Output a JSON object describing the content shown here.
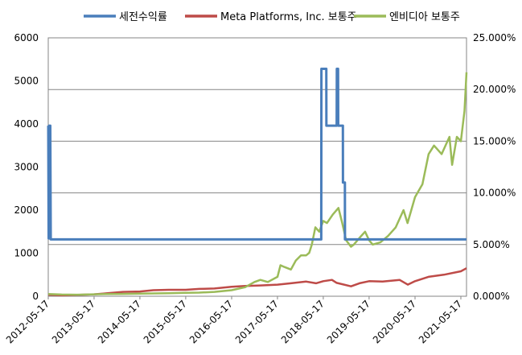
{
  "chart_data": {
    "type": "line",
    "title": "",
    "xlabel": "",
    "ylabel": "",
    "legend_position": "top",
    "grid": true,
    "x_ticks": [
      "2012-05-17",
      "2013-05-17",
      "2014-05-17",
      "2015-05-17",
      "2016-05-17",
      "2017-05-17",
      "2018-05-17",
      "2019-05-17",
      "2020-05-17",
      "2021-05-17"
    ],
    "y_left": {
      "min": 0,
      "max": 6000,
      "ticks": [
        "0",
        "1000",
        "2000",
        "3000",
        "4000",
        "5000",
        "6000"
      ]
    },
    "y_right": {
      "min": 0,
      "max": 25,
      "ticks": [
        "0.000%",
        "5.000%",
        "10.000%",
        "15.000%",
        "20.000%",
        "25.000%"
      ]
    },
    "series": [
      {
        "name": "세전수익률",
        "axis": "right",
        "color": "#4A7EBB",
        "points": [
          [
            "2012-05-17",
            16.5
          ],
          [
            "2012-05-20",
            5.6
          ],
          [
            "2012-05-25",
            16.5
          ],
          [
            "2012-05-28",
            5.6
          ],
          [
            "2012-06-02",
            16.5
          ],
          [
            "2012-06-06",
            5.5
          ],
          [
            "2018-05-01",
            5.5
          ],
          [
            "2018-05-02",
            22.0
          ],
          [
            "2018-06-10",
            22.0
          ],
          [
            "2018-06-11",
            16.5
          ],
          [
            "2018-09-01",
            16.5
          ],
          [
            "2018-09-02",
            22.0
          ],
          [
            "2018-09-12",
            22.0
          ],
          [
            "2018-09-13",
            16.5
          ],
          [
            "2018-10-20",
            16.5
          ],
          [
            "2018-10-21",
            11.0
          ],
          [
            "2018-11-05",
            11.0
          ],
          [
            "2018-11-06",
            5.5
          ],
          [
            "2021-07-01",
            5.5
          ]
        ]
      },
      {
        "name": "Meta Platforms, Inc. 보통주",
        "axis": "left",
        "color": "#BE4B48",
        "points": [
          [
            "2012-05-17",
            35
          ],
          [
            "2012-09-01",
            20
          ],
          [
            "2013-01-01",
            30
          ],
          [
            "2013-05-17",
            45
          ],
          [
            "2013-09-01",
            70
          ],
          [
            "2014-01-01",
            100
          ],
          [
            "2014-05-17",
            110
          ],
          [
            "2014-09-01",
            140
          ],
          [
            "2015-01-01",
            150
          ],
          [
            "2015-05-17",
            150
          ],
          [
            "2015-09-01",
            170
          ],
          [
            "2016-01-01",
            180
          ],
          [
            "2016-05-17",
            220
          ],
          [
            "2016-09-01",
            240
          ],
          [
            "2017-01-01",
            250
          ],
          [
            "2017-05-17",
            270
          ],
          [
            "2017-09-01",
            300
          ],
          [
            "2018-01-01",
            340
          ],
          [
            "2018-03-20",
            300
          ],
          [
            "2018-05-17",
            350
          ],
          [
            "2018-07-25",
            380
          ],
          [
            "2018-09-01",
            310
          ],
          [
            "2018-12-24",
            230
          ],
          [
            "2019-03-01",
            300
          ],
          [
            "2019-05-17",
            350
          ],
          [
            "2019-09-01",
            340
          ],
          [
            "2020-01-15",
            380
          ],
          [
            "2020-03-20",
            270
          ],
          [
            "2020-05-17",
            350
          ],
          [
            "2020-09-01",
            450
          ],
          [
            "2021-01-01",
            500
          ],
          [
            "2021-05-17",
            580
          ],
          [
            "2021-07-01",
            650
          ]
        ]
      },
      {
        "name": "엔비디아 보통주",
        "axis": "left",
        "color": "#9BBB59",
        "points": [
          [
            "2012-05-17",
            50
          ],
          [
            "2012-09-01",
            40
          ],
          [
            "2013-01-01",
            35
          ],
          [
            "2013-05-17",
            45
          ],
          [
            "2013-09-01",
            50
          ],
          [
            "2014-01-01",
            55
          ],
          [
            "2014-05-17",
            60
          ],
          [
            "2014-09-01",
            65
          ],
          [
            "2015-01-01",
            70
          ],
          [
            "2015-05-17",
            80
          ],
          [
            "2015-09-01",
            85
          ],
          [
            "2016-01-01",
            100
          ],
          [
            "2016-05-17",
            140
          ],
          [
            "2016-09-01",
            210
          ],
          [
            "2016-11-15",
            330
          ],
          [
            "2017-01-01",
            380
          ],
          [
            "2017-03-01",
            330
          ],
          [
            "2017-05-17",
            450
          ],
          [
            "2017-06-10",
            720
          ],
          [
            "2017-07-10",
            680
          ],
          [
            "2017-09-01",
            620
          ],
          [
            "2017-10-10",
            830
          ],
          [
            "2017-11-20",
            950
          ],
          [
            "2018-01-01",
            950
          ],
          [
            "2018-01-25",
            1010
          ],
          [
            "2018-02-15",
            1200
          ],
          [
            "2018-03-15",
            1600
          ],
          [
            "2018-04-15",
            1500
          ],
          [
            "2018-05-17",
            1750
          ],
          [
            "2018-06-15",
            1700
          ],
          [
            "2018-08-01",
            1900
          ],
          [
            "2018-09-15",
            2050
          ],
          [
            "2018-10-15",
            1700
          ],
          [
            "2018-11-15",
            1300
          ],
          [
            "2018-12-24",
            1150
          ],
          [
            "2019-01-15",
            1200
          ],
          [
            "2019-03-15",
            1400
          ],
          [
            "2019-04-15",
            1500
          ],
          [
            "2019-05-17",
            1300
          ],
          [
            "2019-06-15",
            1200
          ],
          [
            "2019-08-15",
            1250
          ],
          [
            "2019-10-15",
            1400
          ],
          [
            "2019-12-15",
            1600
          ],
          [
            "2020-02-15",
            2000
          ],
          [
            "2020-03-18",
            1700
          ],
          [
            "2020-05-17",
            2300
          ],
          [
            "2020-07-15",
            2600
          ],
          [
            "2020-09-02",
            3300
          ],
          [
            "2020-10-15",
            3500
          ],
          [
            "2020-12-15",
            3300
          ],
          [
            "2021-02-15",
            3700
          ],
          [
            "2021-03-08",
            3050
          ],
          [
            "2021-04-15",
            3700
          ],
          [
            "2021-05-17",
            3600
          ],
          [
            "2021-06-15",
            4300
          ],
          [
            "2021-07-01",
            5200
          ]
        ]
      }
    ]
  }
}
